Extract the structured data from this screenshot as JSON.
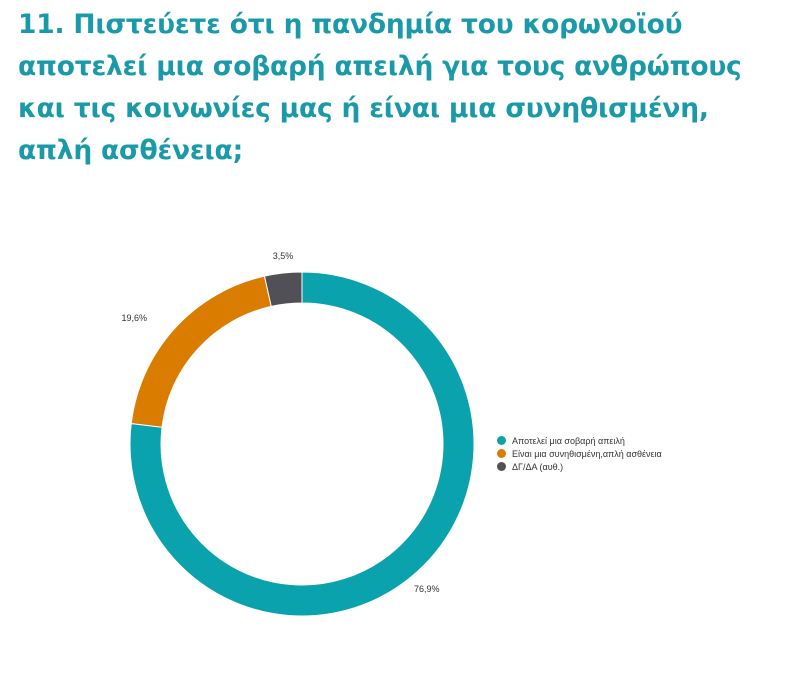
{
  "title": "11. Πιστεύετε ότι η πανδημία του κορωνοϊού αποτελεί μια σοβαρή απειλή για τους ανθρώπους και τις κοινωνίες μας ή είναι μια συνηθισμένη, απλή ασθένεια;",
  "chart_data": {
    "type": "pie",
    "variant": "donut",
    "title": "",
    "categories": [
      "Αποτελεί μια σοβαρή απειλή",
      "Είναι μια συνηθισμένη,απλή ασθένεια",
      "ΔΓ/ΔΑ (αυθ.)"
    ],
    "values": [
      76.9,
      19.6,
      3.5
    ],
    "labels": [
      "76,9%",
      "19,6%",
      "3,5%"
    ],
    "colors": [
      "#0aa2ac",
      "#da7c00",
      "#505056"
    ],
    "legend_position": "right"
  }
}
